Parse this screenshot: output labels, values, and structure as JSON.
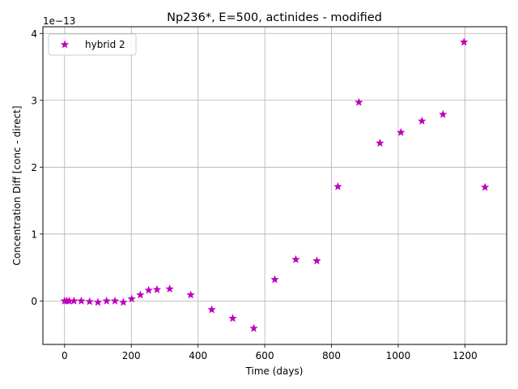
{
  "chart_data": {
    "type": "scatter",
    "title": "Np236*, E=500, actinides - modified",
    "xlabel": "Time (days)",
    "ylabel": "Concentration Diff [conc - direct]",
    "y_offset_label": "1e−13",
    "xlim": [
      -65,
      1325
    ],
    "ylim": [
      -0.65,
      4.1
    ],
    "y_scale_exponent": -13,
    "x_ticks": [
      0,
      200,
      400,
      600,
      800,
      1000,
      1200
    ],
    "x_tick_labels": [
      "0",
      "200",
      "400",
      "600",
      "800",
      "1000",
      "1200"
    ],
    "y_ticks": [
      0,
      1,
      2,
      3,
      4
    ],
    "y_tick_labels": [
      "0",
      "1",
      "2",
      "3",
      "4"
    ],
    "grid": true,
    "legend_placement": "upper-left",
    "series": [
      {
        "name": "hybrid 2",
        "marker": "star",
        "color": "#bf00bf",
        "x": [
          0,
          7,
          14,
          28,
          50,
          75,
          100,
          126,
          151,
          176,
          201,
          227,
          252,
          277,
          315,
          378,
          441,
          504,
          567,
          630,
          693,
          756,
          819,
          882,
          945,
          1008,
          1071,
          1134,
          1197,
          1260
        ],
        "y": [
          0.0,
          0.0,
          0.0,
          0.0,
          0.0,
          -0.01,
          -0.02,
          0.0,
          0.0,
          -0.02,
          0.03,
          0.09,
          0.16,
          0.17,
          0.18,
          0.09,
          -0.13,
          -0.26,
          -0.41,
          0.32,
          0.62,
          0.6,
          1.71,
          2.97,
          2.36,
          2.52,
          2.69,
          2.79,
          3.87,
          1.7
        ]
      }
    ]
  }
}
